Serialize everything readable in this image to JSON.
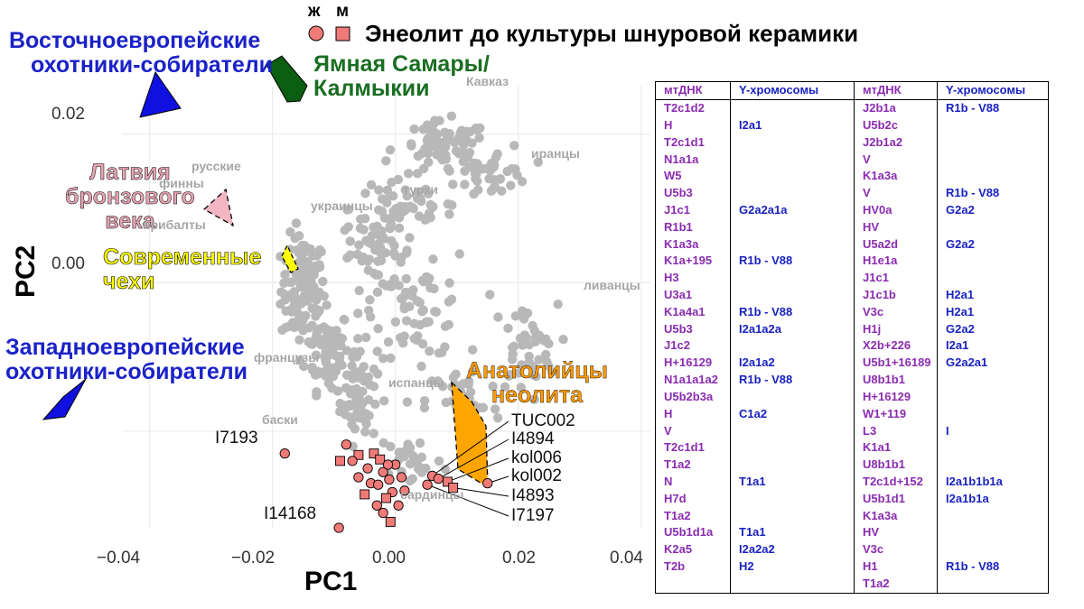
{
  "legend": {
    "female_label": "ж",
    "male_label": "м",
    "title": "Энеолит до культуры шнуровой керамики"
  },
  "group_labels": {
    "ehg": [
      "Восточноевропейские",
      "охотники-собиратели"
    ],
    "yamnaya": [
      "Ямная Самары/",
      "Калмыкии"
    ],
    "latvia": [
      "Латвия",
      "бронзового",
      "века"
    ],
    "czech": [
      "Современные",
      "чехи"
    ],
    "whg": [
      "Западноевропейские",
      "охотники-собиратели"
    ],
    "anatolia": [
      "Анатолийцы",
      "неолита"
    ]
  },
  "population_labels": {
    "caucasus": "Кавказ",
    "iranians": "иранцы",
    "russians": "русские",
    "finns": "финны",
    "turks": "турки",
    "ukrainians": "украинцы",
    "balts": "прибалты",
    "lebanese": "ливанцы",
    "french": "французы",
    "spanish": "испанцы",
    "basques": "баски",
    "sardinians": "сардинцы"
  },
  "sample_labels": {
    "TUC002": "TUC002",
    "I4894": "I4894",
    "kol006": "kol006",
    "kol002": "kol002",
    "I4893": "I4893",
    "I7197": "I7197",
    "I7193": "I7193",
    "I14168": "I14168"
  },
  "colors": {
    "ehg": "#1010e0",
    "whg": "#1010e0",
    "yamnaya": "#0c5e12",
    "latvia": "#f4b6c2",
    "czech": "#ffff00",
    "anatolia": "#ffa500",
    "samples": "#f07a78",
    "background_points": "#b8b8b8",
    "label_blue": "#1a22c8",
    "label_green": "#1a6e22",
    "label_pink": "#e6a3b2",
    "label_orange": "#ff9a00"
  },
  "chart_data": {
    "type": "scatter",
    "title": "Энеолит до культуры шнуровой керамики",
    "xlabel": "PC1",
    "ylabel": "PC2",
    "x_ticks": [
      "−0.04",
      "−0.02",
      "0.00",
      "0.02",
      "0.04"
    ],
    "y_ticks": [
      "0.02",
      "0.00"
    ],
    "x_tick_values": [
      -0.04,
      -0.02,
      0.0,
      0.02,
      0.04
    ],
    "y_tick_values": [
      0.02,
      0.0
    ],
    "xlim": [
      -0.0445,
      0.0415
    ],
    "ylim": [
      -0.033,
      0.0265
    ],
    "grid": true,
    "labeled_samples": [
      {
        "id": "TUC002",
        "sex": "female",
        "x": 0.006,
        "y": -0.026
      },
      {
        "id": "I4894",
        "sex": "female",
        "x": 0.007,
        "y": -0.0264
      },
      {
        "id": "kol006",
        "sex": "male",
        "x": 0.0085,
        "y": -0.0268
      },
      {
        "id": "kol002",
        "sex": "female",
        "x": 0.015,
        "y": -0.027
      },
      {
        "id": "I4893",
        "sex": "male",
        "x": 0.0094,
        "y": -0.0276
      },
      {
        "id": "I7197",
        "sex": "female",
        "x": 0.0052,
        "y": -0.0272
      },
      {
        "id": "I7193",
        "sex": "female",
        "x": -0.018,
        "y": -0.023
      },
      {
        "id": "I14168",
        "sex": "female",
        "x": -0.0092,
        "y": -0.033
      }
    ],
    "cluster_samples": [
      {
        "sex": "female",
        "x": -0.008,
        "y": -0.0218
      },
      {
        "sex": "male",
        "x": -0.006,
        "y": -0.0232
      },
      {
        "sex": "female",
        "x": -0.007,
        "y": -0.024
      },
      {
        "sex": "male",
        "x": -0.0035,
        "y": -0.023
      },
      {
        "sex": "female",
        "x": -0.0045,
        "y": -0.025
      },
      {
        "sex": "female",
        "x": -0.002,
        "y": -0.0255
      },
      {
        "sex": "male",
        "x": -0.0025,
        "y": -0.0238
      },
      {
        "sex": "female",
        "x": -0.001,
        "y": -0.0265
      },
      {
        "sex": "female",
        "x": -0.004,
        "y": -0.027
      },
      {
        "sex": "female",
        "x": -0.0005,
        "y": -0.0282
      },
      {
        "sex": "male",
        "x": -0.0015,
        "y": -0.029
      },
      {
        "sex": "female",
        "x": -0.003,
        "y": -0.03
      },
      {
        "sex": "female",
        "x": 0.001,
        "y": -0.0262
      },
      {
        "sex": "male",
        "x": -0.005,
        "y": -0.0285
      },
      {
        "sex": "female",
        "x": -0.002,
        "y": -0.031
      },
      {
        "sex": "female",
        "x": 0.0,
        "y": -0.0245
      },
      {
        "sex": "male",
        "x": -0.0008,
        "y": -0.0322
      },
      {
        "sex": "female",
        "x": -0.006,
        "y": -0.0262
      },
      {
        "sex": "female",
        "x": 0.0015,
        "y": -0.028
      },
      {
        "sex": "male",
        "x": -0.009,
        "y": -0.024
      },
      {
        "sex": "female",
        "x": -0.0028,
        "y": -0.0272
      },
      {
        "sex": "female",
        "x": 0.0005,
        "y": -0.03
      },
      {
        "sex": "female",
        "x": -0.0012,
        "y": -0.0245
      }
    ],
    "background": {
      "description_series": "modern West Eurasian populations (grey)",
      "clusters": [
        {
          "cx": -0.015,
          "cy": -0.001,
          "sx": 0.003,
          "sy": 0.006,
          "n": 120
        },
        {
          "cx": -0.011,
          "cy": -0.009,
          "sx": 0.003,
          "sy": 0.0045,
          "n": 70
        },
        {
          "cx": -0.006,
          "cy": -0.015,
          "sx": 0.0025,
          "sy": 0.0055,
          "n": 70
        },
        {
          "cx": -0.003,
          "cy": 0.004,
          "sx": 0.005,
          "sy": 0.004,
          "n": 50
        },
        {
          "cx": 0.001,
          "cy": 0.01,
          "sx": 0.007,
          "sy": 0.004,
          "n": 60
        },
        {
          "cx": 0.008,
          "cy": 0.018,
          "sx": 0.006,
          "sy": 0.003,
          "n": 70
        },
        {
          "cx": 0.016,
          "cy": 0.015,
          "sx": 0.005,
          "sy": 0.003,
          "n": 40
        },
        {
          "cx": 0.004,
          "cy": -0.004,
          "sx": 0.006,
          "sy": 0.005,
          "n": 60
        },
        {
          "cx": 0.021,
          "cy": -0.009,
          "sx": 0.0045,
          "sy": 0.005,
          "n": 45
        },
        {
          "cx": 0.011,
          "cy": -0.016,
          "sx": 0.005,
          "sy": 0.004,
          "n": 35
        },
        {
          "cx": 0.003,
          "cy": -0.024,
          "sx": 0.004,
          "sy": 0.003,
          "n": 25
        }
      ]
    }
  },
  "table": {
    "headers": [
      "мтДНК",
      "Y-хромосомы",
      "мтДНК",
      "Y-хромосомы"
    ],
    "rows": [
      [
        "T2c1d2",
        "",
        "J2b1a",
        "R1b - V88"
      ],
      [
        "H",
        "I2a1",
        "U5b2c",
        ""
      ],
      [
        "T2c1d1",
        "",
        "J2b1a2",
        ""
      ],
      [
        "N1a1a",
        "",
        "V",
        ""
      ],
      [
        "W5",
        "",
        "K1a3a",
        ""
      ],
      [
        "U5b3",
        "",
        "V",
        "R1b - V88"
      ],
      [
        "J1c1",
        "G2a2a1a",
        "HV0a",
        "G2a2"
      ],
      [
        "R1b1",
        "",
        "HV",
        ""
      ],
      [
        "K1a3a",
        "",
        "U5a2d",
        "G2a2"
      ],
      [
        "K1a+195",
        "R1b - V88",
        "H1e1a",
        ""
      ],
      [
        "H3",
        "",
        "J1c1",
        ""
      ],
      [
        "U3a1",
        "",
        "J1c1b",
        "H2a1"
      ],
      [
        "K1a4a1",
        "R1b - V88",
        "V3c",
        "H2a1"
      ],
      [
        "U5b3",
        "I2a1a2a",
        "H1j",
        "G2a2"
      ],
      [
        "J1c2",
        "",
        "X2b+226",
        "I2a1"
      ],
      [
        "H+16129",
        "I2a1a2",
        "U5b1+16189",
        "G2a2a1"
      ],
      [
        "N1a1a1a2",
        "R1b - V88",
        "U8b1b1",
        ""
      ],
      [
        "U5b2b3a",
        "",
        "H+16129",
        ""
      ],
      [
        "H",
        "C1a2",
        "W1+119",
        ""
      ],
      [
        "V",
        "",
        "L3",
        "I"
      ],
      [
        "T2c1d1",
        "",
        "K1a1",
        ""
      ],
      [
        "T1a2",
        "",
        "U8b1b1",
        ""
      ],
      [
        "N",
        "T1a1",
        "T2c1d+152",
        "I2a1b1b1a"
      ],
      [
        "H7d",
        "",
        "U5b1d1",
        "I2a1b1a"
      ],
      [
        "T1a2",
        "",
        "K1a3a",
        ""
      ],
      [
        "U5b1d1a",
        "T1a1",
        "HV",
        ""
      ],
      [
        "K2a5",
        "I2a2a2",
        "V3c",
        ""
      ],
      [
        "T2b",
        "H2",
        "H1",
        "R1b - V88"
      ],
      [
        "",
        "",
        "T1a2",
        ""
      ]
    ]
  }
}
